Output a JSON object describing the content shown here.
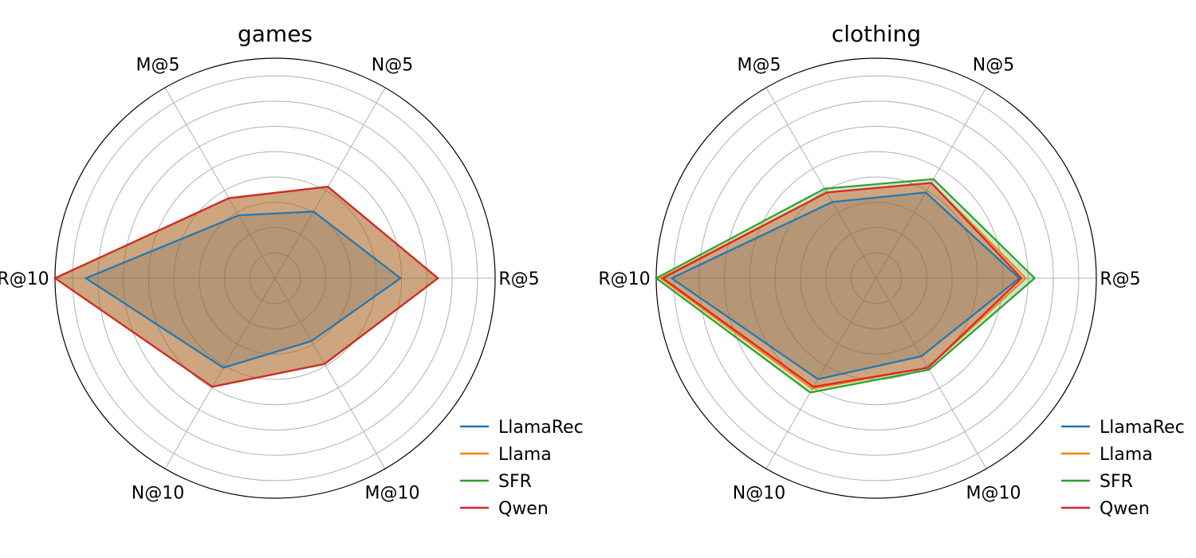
{
  "chart_data": [
    {
      "type": "radar",
      "title": "games",
      "axes": [
        "R@5",
        "N@5",
        "M@5",
        "R@10",
        "N@10",
        "M@10"
      ],
      "rlim": [
        0,
        1
      ],
      "grid": true,
      "legend_position": "lower-right",
      "series": [
        {
          "name": "LlamaRec",
          "color": "#1f77b4",
          "values": [
            0.57,
            0.35,
            0.33,
            0.86,
            0.47,
            0.33
          ]
        },
        {
          "name": "Llama",
          "color": "#ff7f0e",
          "values": [
            0.74,
            0.48,
            0.42,
            1.0,
            0.57,
            0.45
          ]
        },
        {
          "name": "SFR",
          "color": "#2ca02c",
          "values": [
            0.74,
            0.48,
            0.42,
            1.0,
            0.57,
            0.45
          ]
        },
        {
          "name": "Qwen",
          "color": "#d62728",
          "values": [
            0.74,
            0.48,
            0.42,
            1.0,
            0.57,
            0.45
          ]
        }
      ]
    },
    {
      "type": "radar",
      "title": "clothing",
      "axes": [
        "R@5",
        "N@5",
        "M@5",
        "R@10",
        "N@10",
        "M@10"
      ],
      "rlim": [
        0,
        1
      ],
      "grid": true,
      "legend_position": "lower-right",
      "series": [
        {
          "name": "LlamaRec",
          "color": "#1f77b4",
          "values": [
            0.65,
            0.45,
            0.4,
            0.93,
            0.53,
            0.41
          ]
        },
        {
          "name": "Llama",
          "color": "#ff7f0e",
          "values": [
            0.68,
            0.5,
            0.45,
            0.98,
            0.58,
            0.47
          ]
        },
        {
          "name": "SFR",
          "color": "#2ca02c",
          "values": [
            0.72,
            0.52,
            0.47,
            1.0,
            0.6,
            0.48
          ]
        },
        {
          "name": "Qwen",
          "color": "#d62728",
          "values": [
            0.66,
            0.5,
            0.45,
            0.97,
            0.57,
            0.47
          ]
        }
      ]
    }
  ]
}
